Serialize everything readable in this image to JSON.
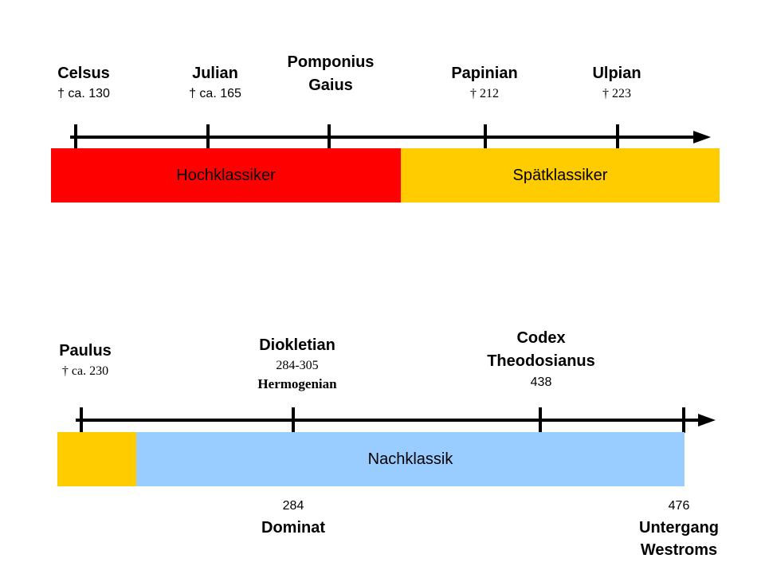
{
  "colors": {
    "hochklassik": "#ff0000",
    "spaetklassik": "#ffcc00",
    "nachklassik": "#99ccff",
    "axis": "#000000"
  },
  "top": {
    "people": [
      {
        "name": "Celsus",
        "date": "† ca. 130"
      },
      {
        "name": "Julian",
        "date": "† ca. 165"
      },
      {
        "name_line1": "Pomponius",
        "name_line2": "Gaius"
      },
      {
        "name": "Papinian",
        "date": "† 212"
      },
      {
        "name": "Ulpian",
        "date": "† 223"
      }
    ],
    "bands": [
      {
        "label": "Hochklassiker"
      },
      {
        "label": "Spätklassiker"
      }
    ]
  },
  "bottom": {
    "people": [
      {
        "name": "Paulus",
        "date": "† ca. 230"
      },
      {
        "name": "Diokletian",
        "date": "284-305",
        "extra": "Hermogenian"
      },
      {
        "name_line1": "Codex",
        "name_line2": "Theodosianus",
        "date": "438"
      }
    ],
    "band": {
      "label": "Nachklassik"
    },
    "below": [
      {
        "year": "284",
        "label": "Dominat"
      },
      {
        "year": "476",
        "label_line1": "Untergang",
        "label_line2": "Westroms"
      }
    ]
  }
}
